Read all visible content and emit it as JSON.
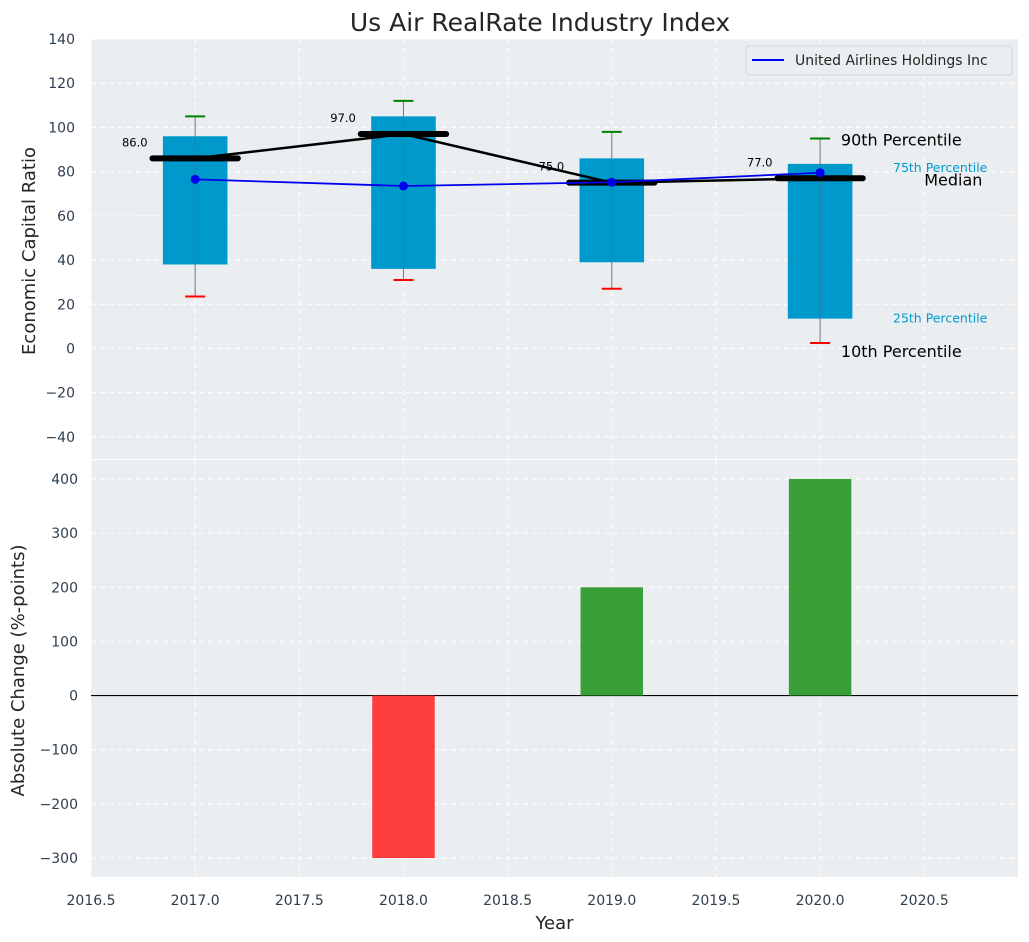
{
  "title": "Us Air RealRate Industry Index",
  "colors": {
    "panel_bg": "#eaeef0",
    "box": "#0099cc",
    "median": "#000000",
    "company_line": "#0000ee",
    "p90_cap": "#008000",
    "p10_cap": "#ff0000",
    "positive_change": "#2e9a2e",
    "negative_change": "#ff3333"
  },
  "chart_data": [
    {
      "type": "box",
      "ylabel": "Economic Capital Ratio",
      "ylim": [
        -50,
        140
      ],
      "xlim": [
        2016.5,
        2020.95
      ],
      "yticks": [
        -40,
        -20,
        0,
        20,
        40,
        60,
        80,
        100,
        120,
        140
      ],
      "ytick_labels": [
        "−40",
        "−20",
        "0",
        "20",
        "40",
        "60",
        "80",
        "100",
        "120",
        "140"
      ],
      "grid": true,
      "legend_position": "top-right",
      "years": [
        2017,
        2018,
        2019,
        2020
      ],
      "p10": [
        23.5,
        31,
        27,
        2.5
      ],
      "p25": [
        38,
        36,
        39,
        13.5
      ],
      "median": [
        86,
        97,
        75,
        77
      ],
      "p75": [
        96,
        105,
        86,
        83.5
      ],
      "p90": [
        105,
        112,
        98,
        95
      ],
      "median_labels": [
        "86.0",
        "97.0",
        "75.0",
        "77.0"
      ],
      "series": [
        {
          "name": "United Airlines Holdings Inc",
          "x": [
            2017,
            2018,
            2019,
            2020
          ],
          "values": [
            76.5,
            73.5,
            75.2,
            79.5
          ]
        }
      ],
      "annotations": {
        "p90": "90th Percentile",
        "p75": "75th Percentile",
        "median": "Median",
        "p25": "25th Percentile",
        "p10": "10th Percentile"
      }
    },
    {
      "type": "bar",
      "xlabel": "Year",
      "ylabel": "Absolute Change (%-points)",
      "ylim": [
        -335,
        435
      ],
      "xlim": [
        2016.5,
        2020.95
      ],
      "yticks": [
        -300,
        -200,
        -100,
        0,
        100,
        200,
        300,
        400
      ],
      "ytick_labels": [
        "−300",
        "−200",
        "−100",
        "0",
        "100",
        "200",
        "300",
        "400"
      ],
      "xticks": [
        2016.5,
        2017.0,
        2017.5,
        2018.0,
        2018.5,
        2019.0,
        2019.5,
        2020.0,
        2020.5
      ],
      "xtick_labels": [
        "2016.5",
        "2017.0",
        "2017.5",
        "2018.0",
        "2018.5",
        "2019.0",
        "2019.5",
        "2020.0",
        "2020.5"
      ],
      "grid": true,
      "x": [
        2018,
        2019,
        2020
      ],
      "values": [
        -300,
        200,
        400
      ]
    }
  ]
}
